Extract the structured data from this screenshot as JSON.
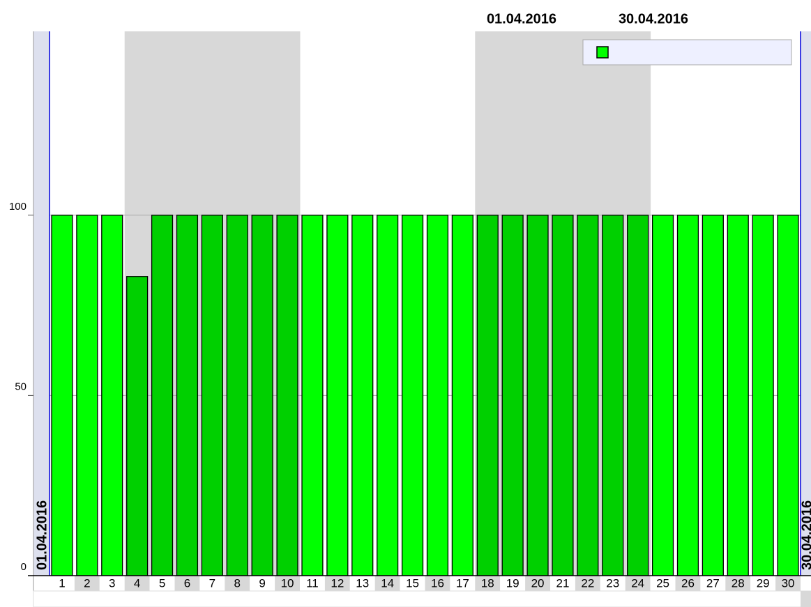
{
  "chart_data": {
    "type": "bar",
    "title_start": "01.04.2016",
    "title_end": "30.04.2016",
    "range_start_label": "01.04.2016",
    "range_end_label": "30.04.2016",
    "categories": [
      "1",
      "2",
      "3",
      "4",
      "5",
      "6",
      "7",
      "8",
      "9",
      "10",
      "11",
      "12",
      "13",
      "14",
      "15",
      "16",
      "17",
      "18",
      "19",
      "20",
      "21",
      "22",
      "23",
      "24",
      "25",
      "26",
      "27",
      "28",
      "29",
      "30"
    ],
    "values": [
      100,
      100,
      100,
      83,
      100,
      100,
      100,
      100,
      100,
      100,
      100,
      100,
      100,
      100,
      100,
      100,
      100,
      100,
      100,
      100,
      100,
      100,
      100,
      100,
      100,
      100,
      100,
      100,
      100,
      100
    ],
    "colors": [
      "#00ff00",
      "#00ff00",
      "#00ff00",
      "#00d000",
      "#00d000",
      "#00d000",
      "#00d000",
      "#00d000",
      "#00d000",
      "#00d000",
      "#00ff00",
      "#00ff00",
      "#00ff00",
      "#00ff00",
      "#00ff00",
      "#00ff00",
      "#00ff00",
      "#00d000",
      "#00d000",
      "#00d000",
      "#00d000",
      "#00d000",
      "#00d000",
      "#00d000",
      "#00ff00",
      "#00ff00",
      "#00ff00",
      "#00ff00",
      "#00ff00",
      "#00ff00"
    ],
    "ylim": [
      0,
      151
    ],
    "yticks": [
      0,
      50,
      100
    ],
    "grid": true
  }
}
